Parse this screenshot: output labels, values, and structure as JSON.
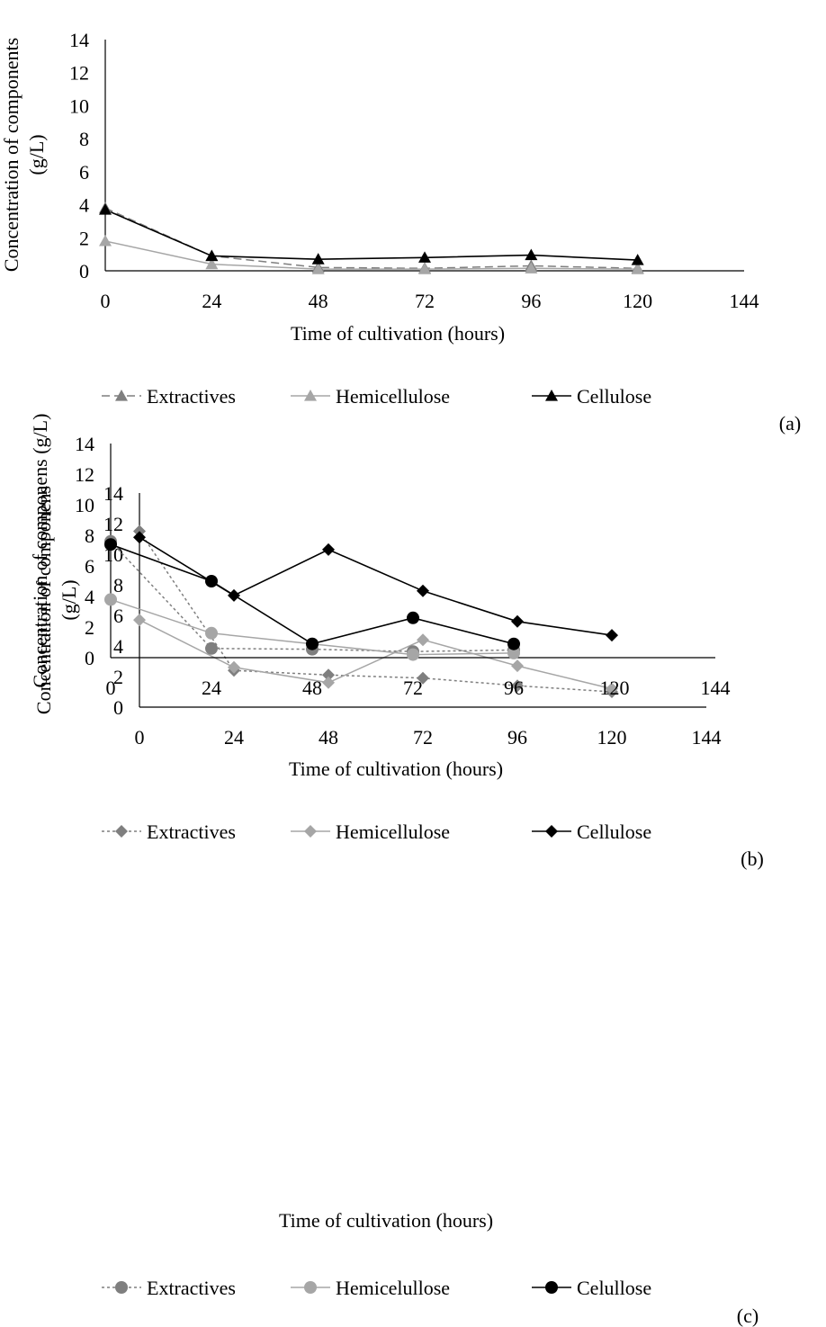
{
  "chart_data": [
    {
      "type": "line",
      "panel_label": "(a)",
      "ylabel_lines": [
        "Concentration of components",
        "(g/L)"
      ],
      "xlabel": "Time of cultivation (hours)",
      "xticks": [
        0,
        24,
        48,
        72,
        96,
        120,
        144
      ],
      "yticks": [
        0,
        2,
        4,
        6,
        8,
        10,
        12,
        14
      ],
      "xlim": [
        0,
        144
      ],
      "ylim": [
        0,
        14
      ],
      "grid": false,
      "legend_position": "bottom",
      "marker": "triangle",
      "series": [
        {
          "name": "Extractives",
          "color": "#7f7f7f",
          "dash": "dashed",
          "x": [
            0,
            24,
            48,
            72,
            96,
            120
          ],
          "values": [
            3.8,
            0.9,
            0.2,
            0.15,
            0.3,
            0.15
          ]
        },
        {
          "name": "Hemicellulose",
          "color": "#a6a6a6",
          "dash": "solid",
          "x": [
            0,
            24,
            48,
            72,
            96,
            120
          ],
          "values": [
            1.8,
            0.4,
            0.1,
            0.1,
            0.15,
            0.1
          ]
        },
        {
          "name": "Cellulose",
          "color": "#000000",
          "dash": "solid",
          "x": [
            0,
            24,
            48,
            72,
            96,
            120
          ],
          "values": [
            3.7,
            0.9,
            0.7,
            0.8,
            0.95,
            0.65
          ]
        }
      ]
    },
    {
      "type": "line",
      "panel_label": "(b)",
      "ylabel_lines": [
        "Concentration of componens",
        "(g/L)"
      ],
      "xlabel": "Time of cultivation (hours)",
      "xticks": [
        0,
        24,
        48,
        72,
        96,
        120,
        144
      ],
      "yticks": [
        0,
        2,
        4,
        6,
        8,
        10,
        12,
        14
      ],
      "xlim": [
        0,
        144
      ],
      "ylim": [
        0,
        14
      ],
      "grid": false,
      "legend_position": "bottom",
      "marker": "diamond",
      "series": [
        {
          "name": "Extractives",
          "color": "#7f7f7f",
          "dash": "dotted",
          "x": [
            0,
            24,
            48,
            72,
            96,
            120
          ],
          "values": [
            11.5,
            2.4,
            2.1,
            1.9,
            1.4,
            1.0
          ]
        },
        {
          "name": "Hemicellulose",
          "color": "#a6a6a6",
          "dash": "solid",
          "x": [
            0,
            24,
            48,
            72,
            96,
            120
          ],
          "values": [
            5.7,
            2.6,
            1.6,
            4.4,
            2.7,
            1.2
          ]
        },
        {
          "name": "Cellulose",
          "color": "#000000",
          "dash": "solid",
          "x": [
            0,
            24,
            48,
            72,
            96,
            120
          ],
          "values": [
            11.1,
            7.3,
            10.3,
            7.6,
            5.6,
            4.7
          ]
        }
      ]
    },
    {
      "type": "line",
      "panel_label": "(c)",
      "ylabel_lines": [
        "Concentration of componens (g/L)"
      ],
      "xlabel": "Time of cultivation (hours)",
      "xticks": [
        0,
        24,
        48,
        72,
        96,
        120,
        144
      ],
      "yticks": [
        0,
        2,
        4,
        6,
        8,
        10,
        12,
        14
      ],
      "xlim": [
        0,
        144
      ],
      "ylim": [
        0,
        14
      ],
      "grid": false,
      "legend_position": "bottom",
      "marker": "circle",
      "series": [
        {
          "name": "Extractives",
          "color": "#7f7f7f",
          "dash": "dotted",
          "x": [
            0,
            24,
            48,
            72,
            96
          ],
          "values": [
            7.6,
            0.6,
            0.55,
            0.4,
            0.5
          ]
        },
        {
          "name": "Hemicelullose",
          "color": "#a6a6a6",
          "dash": "solid",
          "x": [
            0,
            24,
            48,
            72,
            96
          ],
          "values": [
            3.8,
            1.6,
            0.9,
            0.2,
            0.3
          ]
        },
        {
          "name": "Celullose",
          "color": "#000000",
          "dash": "solid",
          "x": [
            0,
            24,
            48,
            72,
            96
          ],
          "values": [
            7.4,
            5.0,
            0.9,
            2.6,
            0.9
          ]
        }
      ]
    }
  ]
}
